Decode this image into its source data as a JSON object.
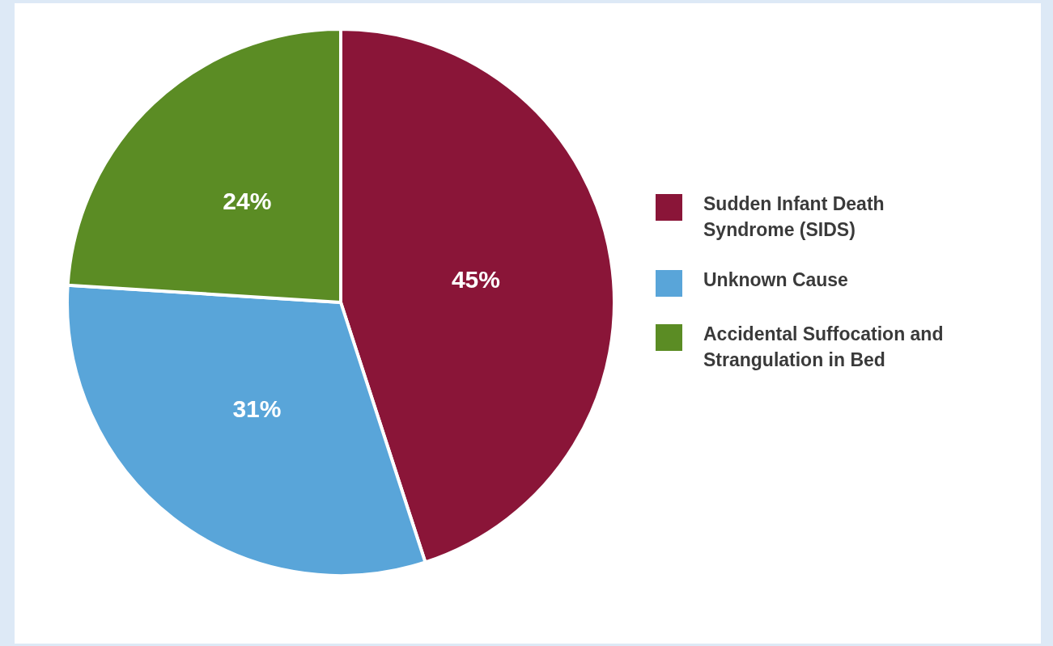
{
  "chart_data": {
    "type": "pie",
    "categories": [
      "Sudden Infant Death Syndrome (SIDS)",
      "Unknown Cause",
      "Accidental Suffocation and Strangulation in Bed"
    ],
    "values": [
      45,
      31,
      24
    ],
    "colors": [
      "#8a1538",
      "#59a5d9",
      "#5b8c24"
    ],
    "value_labels": [
      "45%",
      "31%",
      "24%"
    ],
    "legend": "right"
  }
}
